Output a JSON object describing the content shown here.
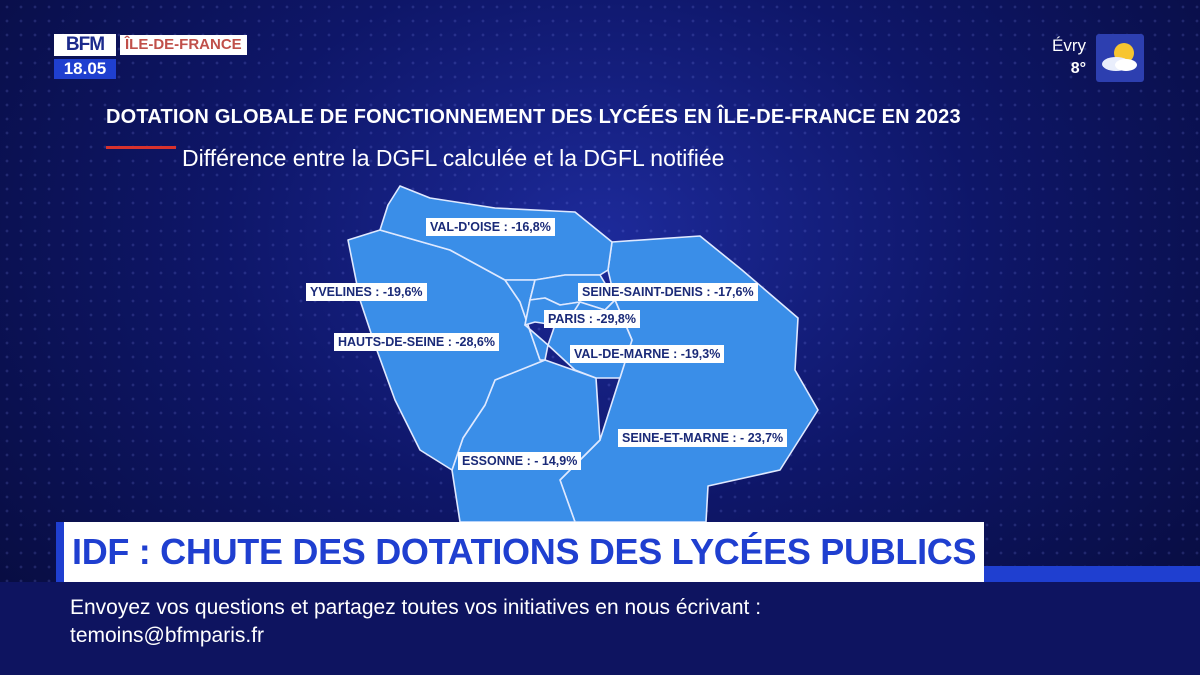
{
  "logo": {
    "brand": "BFM",
    "region": "ÎLE-DE-FRANCE",
    "time": "18.05"
  },
  "weather": {
    "city": "Évry",
    "temperature": "8°",
    "icon": "sun-cloud-icon"
  },
  "map": {
    "title": "DOTATION GLOBALE DE FONCTIONNEMENT DES LYCÉES EN ÎLE-DE-FRANCE EN 2023",
    "subtitle": "Différence entre la DGFL calculée et la DGFL notifiée",
    "fill_color": "#3a8ee8",
    "border_color": "#dfe9ff",
    "departments": [
      {
        "label": "VAL-D'OISE : -16,8%"
      },
      {
        "label": "YVELINES : -19,6%"
      },
      {
        "label": "SEINE-SAINT-DENIS : -17,6%"
      },
      {
        "label": "PARIS : -29,8%"
      },
      {
        "label": "HAUTS-DE-SEINE : -28,6%"
      },
      {
        "label": "VAL-DE-MARNE : -19,3%"
      },
      {
        "label": "SEINE-ET-MARNE : - 23,7%"
      },
      {
        "label": "ESSONNE : - 14,9%"
      }
    ]
  },
  "banner": {
    "headline": "IDF : CHUTE DES DOTATIONS DES LYCÉES PUBLICS",
    "color": "#1f3fd0"
  },
  "ticker": {
    "line1": "Envoyez vos questions et partagez toutes vos initiatives en nous écrivant :",
    "line2": "temoins@bfmparis.fr"
  }
}
